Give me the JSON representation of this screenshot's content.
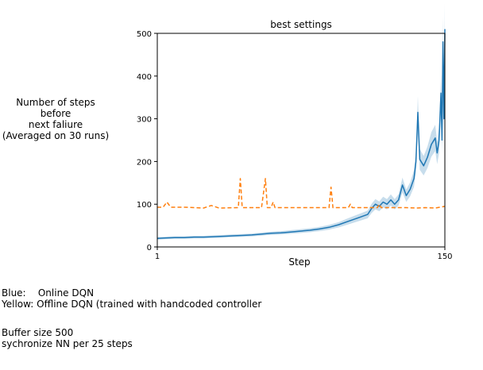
{
  "side_label": "Number of steps before\nnext faliure\n(Averaged on 30 runs)",
  "notes": {
    "legend_blue": "Blue:    Online DQN",
    "legend_yellow": "Yellow: Offline DQN (trained with handcoded controller",
    "buffer": "Buffer size 500",
    "sync": "sychronize NN per 25 steps"
  },
  "chart_data": {
    "type": "line",
    "title": "best settings",
    "xlabel": "Step",
    "ylabel": "",
    "xlim": [
      1,
      150
    ],
    "ylim": [
      0,
      500
    ],
    "x_ticks": [
      1,
      150
    ],
    "y_ticks": [
      0,
      100,
      200,
      300,
      400,
      500
    ],
    "grid": false,
    "series": [
      {
        "color": "#1f77b4",
        "style": "solid",
        "has_confidence_band": true,
        "points": [
          [
            1,
            20
          ],
          [
            5,
            21
          ],
          [
            10,
            22
          ],
          [
            15,
            22
          ],
          [
            20,
            23
          ],
          [
            25,
            23
          ],
          [
            30,
            24
          ],
          [
            35,
            25
          ],
          [
            40,
            26
          ],
          [
            45,
            27
          ],
          [
            50,
            28
          ],
          [
            55,
            30
          ],
          [
            60,
            32
          ],
          [
            65,
            33
          ],
          [
            70,
            35
          ],
          [
            75,
            37
          ],
          [
            80,
            39
          ],
          [
            85,
            42
          ],
          [
            90,
            46
          ],
          [
            95,
            52
          ],
          [
            100,
            60
          ],
          [
            105,
            68
          ],
          [
            110,
            76
          ],
          [
            112,
            90
          ],
          [
            114,
            100
          ],
          [
            116,
            95
          ],
          [
            118,
            105
          ],
          [
            120,
            100
          ],
          [
            122,
            110
          ],
          [
            124,
            100
          ],
          [
            126,
            110
          ],
          [
            128,
            145
          ],
          [
            130,
            120
          ],
          [
            132,
            135
          ],
          [
            134,
            160
          ],
          [
            135,
            200
          ],
          [
            136,
            315
          ],
          [
            137,
            205
          ],
          [
            139,
            190
          ],
          [
            141,
            210
          ],
          [
            143,
            240
          ],
          [
            145,
            255
          ],
          [
            146,
            220
          ],
          [
            147,
            250
          ],
          [
            148,
            360
          ],
          [
            148.5,
            250
          ],
          [
            149,
            480
          ],
          [
            149.5,
            300
          ],
          [
            150,
            510
          ]
        ]
      },
      {
        "color": "#ff7f0e",
        "style": "dashed",
        "has_confidence_band": false,
        "points": [
          [
            1,
            93
          ],
          [
            4,
            93
          ],
          [
            6,
            105
          ],
          [
            8,
            93
          ],
          [
            15,
            93
          ],
          [
            25,
            91
          ],
          [
            29,
            97
          ],
          [
            33,
            91
          ],
          [
            43,
            92
          ],
          [
            44,
            160
          ],
          [
            45,
            92
          ],
          [
            55,
            92
          ],
          [
            57,
            160
          ],
          [
            58,
            92
          ],
          [
            60,
            92
          ],
          [
            61,
            105
          ],
          [
            62,
            92
          ],
          [
            80,
            92
          ],
          [
            90,
            92
          ],
          [
            91,
            140
          ],
          [
            92,
            92
          ],
          [
            100,
            92
          ],
          [
            101,
            100
          ],
          [
            102,
            92
          ],
          [
            115,
            92
          ],
          [
            116,
            100
          ],
          [
            117,
            92
          ],
          [
            130,
            92
          ],
          [
            135,
            91
          ],
          [
            140,
            92
          ],
          [
            145,
            91
          ],
          [
            150,
            95
          ]
        ]
      }
    ]
  }
}
